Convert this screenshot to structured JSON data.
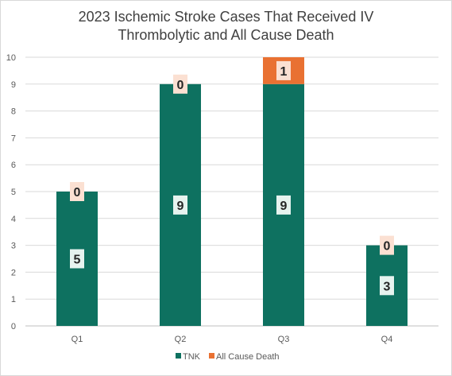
{
  "chart_data": {
    "type": "bar",
    "stacked": true,
    "title_lines": [
      "2023 Ischemic Stroke Cases That Received IV",
      "Thrombolytic and All Cause Death"
    ],
    "categories": [
      "Q1",
      "Q2",
      "Q3",
      "Q4"
    ],
    "series": [
      {
        "name": "TNK",
        "values": [
          5,
          9,
          9,
          3
        ],
        "color": "#0e7160"
      },
      {
        "name": "All Cause Death",
        "values": [
          0,
          0,
          1,
          0
        ],
        "color": "#e97132"
      }
    ],
    "ylim": [
      0,
      10
    ],
    "yticks": [
      0,
      1,
      2,
      3,
      4,
      5,
      6,
      7,
      8,
      9,
      10
    ],
    "grid": true,
    "legend_position": "bottom",
    "data_labels": true,
    "label_box_colors": {
      "TNK": "#e6f3ef",
      "All Cause Death": "#fbe0d2"
    }
  }
}
